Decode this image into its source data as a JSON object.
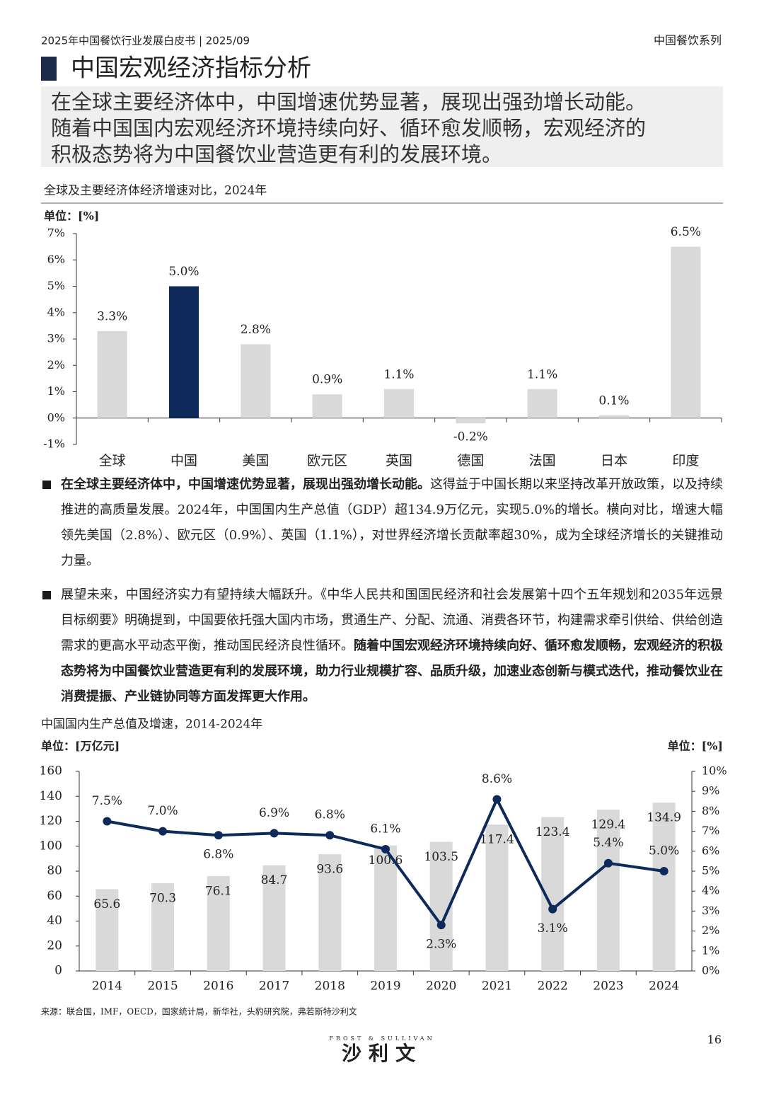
{
  "header": {
    "left": "2025年中国餐饮行业发展白皮书 | 2025/09",
    "right": "中国餐饮系列"
  },
  "section_title": "中国宏观经济指标分析",
  "headline": [
    "在全球主要经济体中，中国增速优势显著，展现出强劲增长动能。",
    "随着中国国内宏观经济环境持续向好、循环愈发顺畅，宏观经济的",
    "积极态势将为中国餐饮业营造更有利的发展环境。"
  ],
  "chart_data": [
    {
      "type": "bar",
      "title": "全球及主要经济体经济增速对比，2024年",
      "unit": "单位：[%]",
      "categories": [
        "全球",
        "中国",
        "美国",
        "欧元区",
        "英国",
        "德国",
        "法国",
        "日本",
        "印度"
      ],
      "values": [
        3.3,
        5.0,
        2.8,
        0.9,
        1.1,
        -0.2,
        1.1,
        0.1,
        6.5
      ],
      "value_labels": [
        "3.3%",
        "5.0%",
        "2.8%",
        "0.9%",
        "1.1%",
        "-0.2%",
        "1.1%",
        "0.1%",
        "6.5%"
      ],
      "colors": [
        "#d9d9d9",
        "#0d2a5a",
        "#d9d9d9",
        "#d9d9d9",
        "#d9d9d9",
        "#d9d9d9",
        "#d9d9d9",
        "#d9d9d9",
        "#d9d9d9"
      ],
      "ylim": [
        -1,
        7
      ],
      "yticks": [
        {
          "value": -1,
          "label": "-1%"
        },
        {
          "value": 0,
          "label": "0%"
        },
        {
          "value": 1,
          "label": "1%"
        },
        {
          "value": 2,
          "label": "2%"
        },
        {
          "value": 3,
          "label": "3%"
        },
        {
          "value": 4,
          "label": "4%"
        },
        {
          "value": 5,
          "label": "5%"
        },
        {
          "value": 6,
          "label": "6%"
        },
        {
          "value": 7,
          "label": "7%"
        }
      ]
    },
    {
      "type": "combo",
      "title": "中国国内生产总值及增速，2014-2024年",
      "unit_left": "单位：[万亿元]",
      "unit_right": "单位：[%]",
      "categories": [
        "2014",
        "2015",
        "2016",
        "2017",
        "2018",
        "2019",
        "2020",
        "2021",
        "2022",
        "2023",
        "2024"
      ],
      "series": [
        {
          "type": "bar",
          "color": "#d9d9d9",
          "values": [
            65.6,
            70.3,
            76.1,
            84.7,
            93.6,
            100.6,
            103.5,
            117.4,
            123.4,
            129.4,
            134.9
          ]
        },
        {
          "type": "line",
          "axis": "y2",
          "color": "#0d2a5a",
          "values": [
            7.5,
            7.0,
            6.8,
            6.9,
            6.8,
            6.1,
            2.3,
            8.6,
            3.1,
            5.4,
            5.0
          ],
          "value_labels": [
            "7.5%",
            "7.0%",
            "6.8%",
            "6.9%",
            "6.8%",
            "6.1%",
            "2.3%",
            "8.6%",
            "3.1%",
            "5.4%",
            "5.0%"
          ]
        }
      ],
      "ylim": [
        0,
        160
      ],
      "yticks": [
        0,
        20,
        40,
        60,
        80,
        100,
        120,
        140,
        160
      ],
      "y2lim": [
        0,
        10
      ],
      "y2ticks": [
        {
          "value": 0,
          "label": "0%"
        },
        {
          "value": 1,
          "label": "1%"
        },
        {
          "value": 2,
          "label": "2%"
        },
        {
          "value": 3,
          "label": "3%"
        },
        {
          "value": 4,
          "label": "4%"
        },
        {
          "value": 5,
          "label": "5%"
        },
        {
          "value": 6,
          "label": "6%"
        },
        {
          "value": 7,
          "label": "7%"
        },
        {
          "value": 8,
          "label": "8%"
        },
        {
          "value": 9,
          "label": "9%"
        },
        {
          "value": 10,
          "label": "10%"
        }
      ]
    }
  ],
  "bullets": [
    [
      {
        "text": "在全球主要经济体中，中国增速优势显著，展现出强劲增长动能。",
        "bold": true
      },
      {
        "text": "这得益于中国长期以来坚持改革开放政策，以及持续推进的高质量发展。2024年，中国国内生产总值（GDP）超134.9万亿元，实现5.0%的增长。横向对比，增速大幅领先美国（2.8%）、欧元区（0.9%）、英国（1.1%），对世界经济增长贡献率超30%，成为全球经济增长的关键推动力量。",
        "bold": false
      }
    ],
    [
      {
        "text": "展望未来，中国经济实力有望持续大幅跃升。《中华人民共和国国民经济和社会发展第十四个五年规划和2035年远景目标纲要》明确提到，中国要依托强大国内市场，贯通生产、分配、流通、消费各环节，构建需求牵引供给、供给创造需求的更高水平动态平衡，推动国民经济良性循环。",
        "bold": false
      },
      {
        "text": "随着中国宏观经济环境持续向好、循环愈发顺畅，宏观经济的积极态势将为中国餐饮业营造更有利的发展环境，助力行业规模扩容、品质升级，加速业态创新与模式迭代，推动餐饮业在消费提振、产业链协同等方面发挥更大作用。",
        "bold": true
      }
    ]
  ],
  "source": "来源：联合国，IMF，OECD，国家统计局，新华社，头豹研究院，弗若斯特沙利文",
  "page_number": "16",
  "logo": {
    "top": "FROST & SULLIVAN",
    "main": "沙利文"
  }
}
